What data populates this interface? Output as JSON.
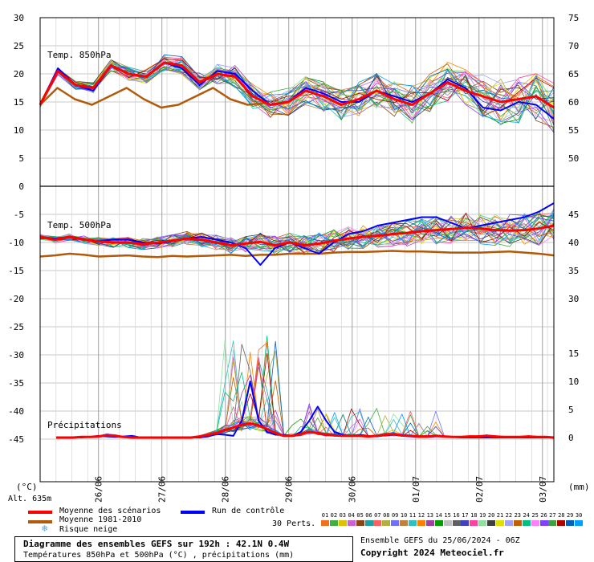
{
  "chart_data": {
    "type": "line",
    "title": "Diagramme des ensembles GEFS sur 192h : 42.1N 0.4W",
    "subtitle": "Températures 850hPa et 500hPa (°C) , précipitations (mm)",
    "x_dates": [
      "26/06",
      "27/06",
      "28/06",
      "29/06",
      "30/06",
      "01/07",
      "02/07",
      "03/07"
    ],
    "left_axis": {
      "label": "(°C)",
      "ticks": [
        30,
        25,
        20,
        15,
        10,
        5,
        0,
        -5,
        -10,
        -15,
        -20,
        -25,
        -30,
        -35,
        -40,
        -45
      ]
    },
    "right_axis": {
      "label": "(mm)",
      "ticks": [
        75,
        70,
        65,
        60,
        55,
        50,
        45,
        40,
        35,
        30,
        15,
        10,
        5,
        0
      ]
    },
    "panel_labels": {
      "t850": "Temp. 850hPa",
      "t500": "Temp. 500hPa",
      "precip": "Précipitations"
    },
    "grid": true,
    "t850": {
      "mean": [
        14.5,
        20.5,
        18.0,
        17.5,
        21.5,
        20.0,
        19.5,
        22.0,
        21.5,
        18.5,
        20.0,
        19.5,
        16.0,
        14.5,
        15.0,
        17.0,
        16.0,
        14.5,
        15.5,
        17.0,
        15.5,
        14.5,
        16.5,
        18.5,
        17.0,
        16.0,
        15.0,
        15.5,
        16.0,
        14.0
      ],
      "control": [
        14.5,
        21.0,
        18.0,
        17.0,
        21.5,
        20.0,
        19.5,
        22.0,
        21.0,
        18.0,
        20.5,
        20.0,
        17.0,
        14.5,
        15.0,
        17.5,
        16.5,
        15.0,
        15.0,
        17.0,
        16.0,
        15.0,
        16.5,
        19.0,
        17.5,
        14.0,
        13.5,
        15.0,
        14.5,
        12.0
      ],
      "climatology": [
        14.5,
        17.5,
        15.5,
        14.5,
        16.0,
        17.5,
        15.5,
        14.0,
        14.5,
        16.0,
        17.5,
        15.5,
        14.5,
        14.8
      ]
    },
    "t500": {
      "mean": [
        -9.0,
        -9.5,
        -9.0,
        -9.5,
        -9.8,
        -10.0,
        -10.0,
        -10.3,
        -10.0,
        -9.7,
        -9.3,
        -9.5,
        -10.0,
        -10.5,
        -10.2,
        -9.9,
        -10.5,
        -10.0,
        -10.5,
        -10.2,
        -9.7,
        -9.3,
        -9.0,
        -8.8,
        -8.5,
        -8.3,
        -8.0,
        -7.8,
        -7.6,
        -7.4,
        -7.5,
        -7.8,
        -7.9,
        -7.8,
        -7.5,
        -7.0
      ],
      "control": [
        -9.0,
        -9.3,
        -9.0,
        -9.5,
        -9.7,
        -9.5,
        -9.5,
        -10.0,
        -10.2,
        -9.8,
        -9.3,
        -9.0,
        -9.5,
        -10.0,
        -11.0,
        -14.0,
        -11.0,
        -10.0,
        -11.0,
        -12.0,
        -10.0,
        -8.5,
        -8.0,
        -7.0,
        -6.5,
        -6.0,
        -5.5,
        -5.5,
        -6.5,
        -7.5,
        -7.0,
        -6.5,
        -6.0,
        -5.5,
        -4.5,
        -3.0
      ],
      "climatology": [
        -12.5,
        -12.3,
        -12.0,
        -12.2,
        -12.5,
        -12.4,
        -12.3,
        -12.5,
        -12.6,
        -12.4,
        -12.5,
        -12.4,
        -12.3,
        -12.2,
        -12.4,
        -12.2,
        -12.2,
        -12.0,
        -12.0,
        -12.0,
        -11.8,
        -11.7,
        -11.7,
        -11.6,
        -11.5,
        -11.6,
        -11.6,
        -11.7,
        -11.8,
        -11.8,
        -11.8,
        -11.7,
        -11.6,
        -11.8,
        -12.0,
        -12.3
      ]
    },
    "precip": {
      "mean": [
        0,
        0,
        0,
        0.1,
        0.1,
        0.2,
        0.4,
        0.3,
        0.1,
        0,
        0,
        0,
        0,
        0,
        0,
        0,
        0,
        0.2,
        0.5,
        0.8,
        1.3,
        1.8,
        2.3,
        2.5,
        2.2,
        1.5,
        0.8,
        0.3,
        0.3,
        0.6,
        1.0,
        0.8,
        0.5,
        0.4,
        0.3,
        0.3,
        0.3,
        0.2,
        0.3,
        0.5,
        0.6,
        0.4,
        0.3,
        0.2,
        0.2,
        0.3,
        0.2,
        0.1,
        0.1,
        0.2,
        0.2,
        0.3,
        0.2,
        0.1,
        0.1,
        0.1,
        0.2,
        0.1,
        0.1,
        0
      ],
      "control": [
        0,
        0,
        0,
        0,
        0.1,
        0.3,
        0.2,
        0.1,
        0.2,
        0.3,
        0,
        0,
        0,
        0,
        0,
        0,
        0,
        0,
        0.2,
        0.6,
        0.5,
        0.3,
        3.0,
        10.0,
        3.0,
        1.0,
        0.5,
        0.5,
        0.3,
        1.0,
        3.0,
        5.5,
        3.0,
        1.0,
        0.5,
        0.3,
        0.5,
        0.3,
        0.2,
        0.4,
        0.5,
        0.3,
        0.2,
        0.1,
        0.1,
        0.2,
        0.2,
        0.1,
        0,
        0,
        0,
        0,
        0,
        0,
        0,
        0,
        0,
        0,
        0,
        0
      ],
      "member_peak_max": 16.0
    }
  },
  "legend": {
    "mean_label": "Moyenne des scénarios",
    "mean_color": "#ff0000",
    "climatology_label": "Moyenne 1981-2010",
    "climatology_color": "#b05a0a",
    "control_label": "Run de contrôle",
    "control_color": "#0000ff",
    "snow_label": "Risque neige",
    "altitude_label": "Alt. 635m",
    "perts_label": "30 Perts.",
    "perturbations": [
      "01",
      "02",
      "03",
      "04",
      "05",
      "06",
      "07",
      "08",
      "09",
      "10",
      "11",
      "12",
      "13",
      "14",
      "15",
      "16",
      "17",
      "18",
      "19",
      "20",
      "21",
      "22",
      "23",
      "24",
      "25",
      "26",
      "27",
      "28",
      "29",
      "30"
    ],
    "perturbation_colors": [
      "#f07020",
      "#40b040",
      "#e0c000",
      "#d060d0",
      "#8b4513",
      "#20a0a0",
      "#ff6060",
      "#b0b040",
      "#7070ff",
      "#c08040",
      "#30c0c0",
      "#ff8000",
      "#a040a0",
      "#00a000",
      "#c0c0c0",
      "#606060",
      "#4040c0",
      "#ff40a0",
      "#90e0a0",
      "#404040",
      "#e0e000",
      "#a0a0ff",
      "#c06000",
      "#00c080",
      "#ff80ff",
      "#8040ff",
      "#40a040",
      "#b00000",
      "#0060c0",
      "#00a0ff"
    ]
  },
  "info": {
    "title": "Diagramme des ensembles GEFS sur 192h : 42.1N 0.4W",
    "subtitle": "Températures 850hPa et 500hPa (°C) , précipitations (mm)",
    "run": "Ensemble GEFS du 25/06/2024 - 06Z",
    "copyright": "Copyright 2024 Meteociel.fr"
  }
}
